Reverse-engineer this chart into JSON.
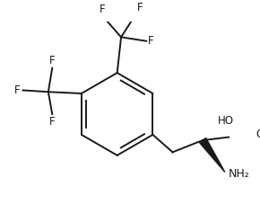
{
  "background_color": "#ffffff",
  "line_color": "#1a1a1a",
  "text_color": "#1a1a1a",
  "font_size": 8.5,
  "line_width": 1.4,
  "figsize": [
    2.9,
    2.27
  ],
  "dpi": 100,
  "xlim": [
    0,
    290
  ],
  "ylim": [
    0,
    227
  ]
}
